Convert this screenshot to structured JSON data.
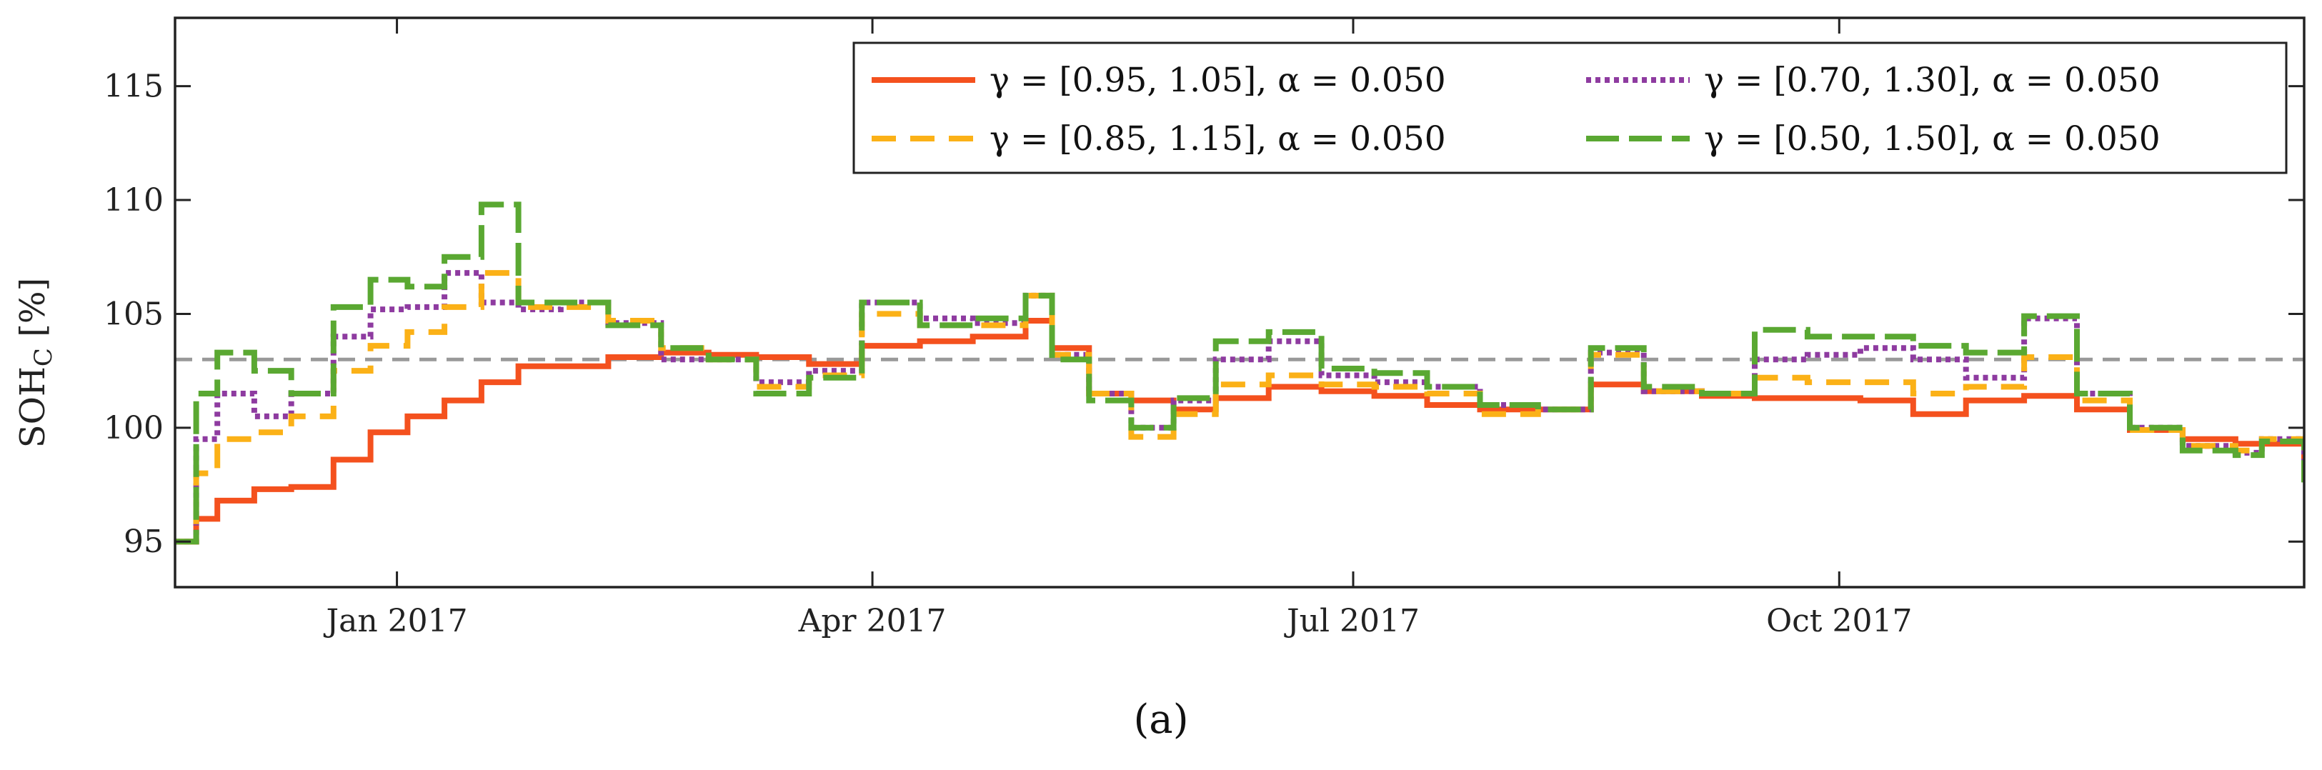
{
  "panel_label": "(a)",
  "chart_data": {
    "type": "line",
    "xlabel": "",
    "ylabel": "SOH",
    "ylabel_sub": "C",
    "ylabel_unit": " [%]",
    "xlim": [
      "2016-11-20",
      "2017-12-28"
    ],
    "ylim": [
      93,
      118
    ],
    "yticks": [
      95,
      100,
      105,
      110,
      115
    ],
    "xticks": [
      {
        "date": "2017-01-01",
        "label": "Jan 2017"
      },
      {
        "date": "2017-04-01",
        "label": "Apr 2017"
      },
      {
        "date": "2017-07-01",
        "label": "Jul 2017"
      },
      {
        "date": "2017-10-01",
        "label": "Oct 2017"
      }
    ],
    "grid": false,
    "legend_position": "top-right",
    "reference_line": {
      "y": 103,
      "style": "dashed",
      "color": "#999999"
    },
    "series": [
      {
        "name": "γ = [0.95, 1.05], α = 0.050",
        "color": "#F4511E",
        "dash": "solid",
        "x": [
          "2016-11-20",
          "2016-11-24",
          "2016-11-28",
          "2016-12-05",
          "2016-12-12",
          "2016-12-20",
          "2016-12-27",
          "2017-01-03",
          "2017-01-10",
          "2017-01-17",
          "2017-01-24",
          "2017-02-01",
          "2017-02-10",
          "2017-02-20",
          "2017-03-01",
          "2017-03-10",
          "2017-03-20",
          "2017-03-30",
          "2017-04-10",
          "2017-04-20",
          "2017-04-30",
          "2017-05-05",
          "2017-05-12",
          "2017-05-20",
          "2017-05-28",
          "2017-06-05",
          "2017-06-15",
          "2017-06-25",
          "2017-07-05",
          "2017-07-15",
          "2017-07-25",
          "2017-08-05",
          "2017-08-15",
          "2017-08-25",
          "2017-09-05",
          "2017-09-15",
          "2017-09-25",
          "2017-10-05",
          "2017-10-15",
          "2017-10-25",
          "2017-11-05",
          "2017-11-15",
          "2017-11-25",
          "2017-12-05",
          "2017-12-15",
          "2017-12-20",
          "2017-12-28"
        ],
        "y": [
          95.0,
          96.0,
          96.8,
          97.3,
          97.4,
          98.6,
          99.8,
          100.5,
          101.2,
          102.0,
          102.7,
          102.7,
          103.1,
          103.3,
          103.2,
          103.1,
          102.8,
          103.6,
          103.8,
          104.0,
          104.7,
          103.5,
          101.5,
          101.2,
          100.8,
          101.3,
          101.8,
          101.6,
          101.4,
          101.0,
          100.8,
          100.8,
          101.9,
          101.6,
          101.4,
          101.3,
          101.3,
          101.2,
          100.6,
          101.2,
          101.4,
          100.8,
          99.9,
          99.5,
          99.3,
          99.3,
          98.5
        ]
      },
      {
        "name": "γ = [0.70, 1.30], α = 0.050",
        "color": "#8E3BA0",
        "dash": "dotted",
        "x": [
          "2016-11-20",
          "2016-11-24",
          "2016-11-28",
          "2016-12-05",
          "2016-12-12",
          "2016-12-20",
          "2016-12-27",
          "2017-01-03",
          "2017-01-10",
          "2017-01-17",
          "2017-01-24",
          "2017-02-01",
          "2017-02-10",
          "2017-02-20",
          "2017-03-01",
          "2017-03-10",
          "2017-03-20",
          "2017-03-30",
          "2017-04-10",
          "2017-04-20",
          "2017-04-30",
          "2017-05-05",
          "2017-05-12",
          "2017-05-20",
          "2017-05-28",
          "2017-06-05",
          "2017-06-15",
          "2017-06-25",
          "2017-07-05",
          "2017-07-15",
          "2017-07-25",
          "2017-08-05",
          "2017-08-15",
          "2017-08-25",
          "2017-09-05",
          "2017-09-15",
          "2017-09-25",
          "2017-10-05",
          "2017-10-15",
          "2017-10-25",
          "2017-11-05",
          "2017-11-15",
          "2017-11-25",
          "2017-12-05",
          "2017-12-15",
          "2017-12-20",
          "2017-12-28"
        ],
        "y": [
          95.0,
          99.5,
          101.5,
          100.5,
          101.5,
          104.0,
          105.2,
          105.3,
          106.8,
          105.5,
          105.2,
          105.5,
          104.6,
          103.0,
          103.0,
          102.0,
          102.5,
          105.5,
          104.8,
          104.6,
          105.8,
          103.2,
          101.5,
          100.0,
          101.2,
          103.0,
          103.8,
          102.3,
          102.0,
          101.8,
          101.0,
          100.8,
          103.3,
          101.6,
          101.5,
          103.0,
          103.2,
          103.5,
          103.0,
          102.2,
          104.8,
          101.5,
          100.0,
          99.2,
          98.9,
          99.5,
          97.8
        ]
      },
      {
        "name": "γ = [0.85, 1.15], α = 0.050",
        "color": "#FBB117",
        "dash": "dashed",
        "x": [
          "2016-11-20",
          "2016-11-24",
          "2016-11-28",
          "2016-12-05",
          "2016-12-12",
          "2016-12-20",
          "2016-12-27",
          "2017-01-03",
          "2017-01-10",
          "2017-01-17",
          "2017-01-24",
          "2017-02-01",
          "2017-02-10",
          "2017-02-20",
          "2017-03-01",
          "2017-03-10",
          "2017-03-20",
          "2017-03-30",
          "2017-04-10",
          "2017-04-20",
          "2017-04-30",
          "2017-05-05",
          "2017-05-12",
          "2017-05-20",
          "2017-05-28",
          "2017-06-05",
          "2017-06-15",
          "2017-06-25",
          "2017-07-05",
          "2017-07-15",
          "2017-07-25",
          "2017-08-05",
          "2017-08-15",
          "2017-08-25",
          "2017-09-05",
          "2017-09-15",
          "2017-09-25",
          "2017-10-05",
          "2017-10-15",
          "2017-10-25",
          "2017-11-05",
          "2017-11-15",
          "2017-11-25",
          "2017-12-05",
          "2017-12-15",
          "2017-12-20",
          "2017-12-28"
        ],
        "y": [
          95.0,
          98.0,
          99.5,
          99.8,
          100.5,
          102.5,
          103.6,
          104.2,
          105.3,
          106.8,
          105.3,
          105.3,
          104.7,
          103.5,
          103.0,
          101.8,
          102.3,
          105.0,
          104.5,
          104.5,
          105.8,
          103.2,
          101.5,
          99.6,
          100.6,
          101.9,
          102.3,
          101.9,
          101.8,
          101.5,
          100.6,
          100.8,
          103.2,
          101.6,
          101.5,
          102.2,
          102.0,
          102.0,
          101.5,
          101.8,
          103.1,
          101.2,
          99.9,
          99.2,
          99.0,
          99.5,
          97.8
        ]
      },
      {
        "name": "γ = [0.50, 1.50], α = 0.050",
        "color": "#5AA832",
        "dash": "longdash",
        "x": [
          "2016-11-20",
          "2016-11-24",
          "2016-11-28",
          "2016-12-05",
          "2016-12-12",
          "2016-12-20",
          "2016-12-27",
          "2017-01-03",
          "2017-01-10",
          "2017-01-17",
          "2017-01-24",
          "2017-02-01",
          "2017-02-10",
          "2017-02-20",
          "2017-03-01",
          "2017-03-10",
          "2017-03-20",
          "2017-03-30",
          "2017-04-10",
          "2017-04-20",
          "2017-04-30",
          "2017-05-05",
          "2017-05-12",
          "2017-05-20",
          "2017-05-28",
          "2017-06-05",
          "2017-06-15",
          "2017-06-25",
          "2017-07-05",
          "2017-07-15",
          "2017-07-25",
          "2017-08-05",
          "2017-08-15",
          "2017-08-25",
          "2017-09-05",
          "2017-09-15",
          "2017-09-25",
          "2017-10-05",
          "2017-10-15",
          "2017-10-25",
          "2017-11-05",
          "2017-11-15",
          "2017-11-25",
          "2017-12-05",
          "2017-12-15",
          "2017-12-20",
          "2017-12-28"
        ],
        "y": [
          95.0,
          101.5,
          103.3,
          102.5,
          101.5,
          105.3,
          106.5,
          106.2,
          107.5,
          109.8,
          105.5,
          105.5,
          104.5,
          103.5,
          103.0,
          101.5,
          102.2,
          105.5,
          104.5,
          104.8,
          105.8,
          103.0,
          101.2,
          100.0,
          101.3,
          103.8,
          104.2,
          102.6,
          102.4,
          101.8,
          101.0,
          100.8,
          103.5,
          101.8,
          101.5,
          104.3,
          104.0,
          104.0,
          103.6,
          103.3,
          104.9,
          101.5,
          100.0,
          99.0,
          98.8,
          99.4,
          97.6
        ]
      }
    ]
  }
}
